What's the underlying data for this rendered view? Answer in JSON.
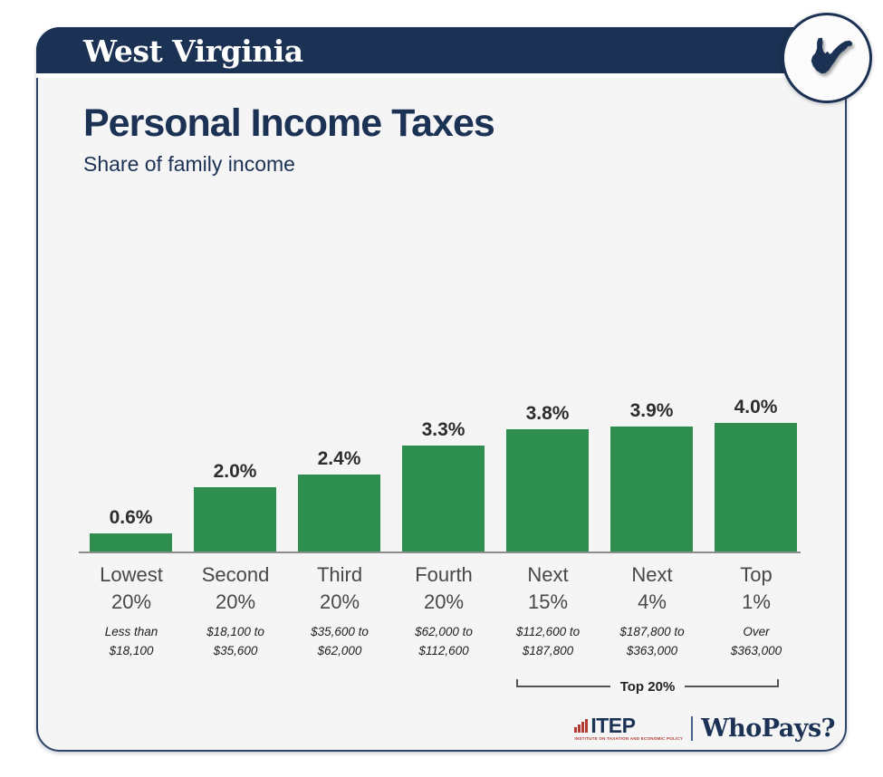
{
  "header": {
    "state_name": "West Virginia",
    "badge_icon": "west-virginia-state-silhouette"
  },
  "main": {
    "title": "Personal Income Taxes",
    "subtitle": "Share of family income"
  },
  "chart_data": {
    "type": "bar",
    "title": "Personal Income Taxes",
    "subtitle": "Share of family income",
    "categories": [
      "Lowest 20%",
      "Second 20%",
      "Third 20%",
      "Fourth 20%",
      "Next 15%",
      "Next 4%",
      "Top 1%"
    ],
    "values": [
      0.6,
      2.0,
      2.4,
      3.3,
      3.8,
      3.9,
      4.0
    ],
    "bars": [
      {
        "label": [
          "Lowest",
          "20%"
        ],
        "income_range": [
          "Less than",
          "$18,100"
        ],
        "value": 0.6,
        "value_label": "0.6%"
      },
      {
        "label": [
          "Second",
          "20%"
        ],
        "income_range": [
          "$18,100 to",
          "$35,600"
        ],
        "value": 2.0,
        "value_label": "2.0%"
      },
      {
        "label": [
          "Third",
          "20%"
        ],
        "income_range": [
          "$35,600 to",
          "$62,000"
        ],
        "value": 2.4,
        "value_label": "2.4%"
      },
      {
        "label": [
          "Fourth",
          "20%"
        ],
        "income_range": [
          "$62,000 to",
          "$112,600"
        ],
        "value": 3.3,
        "value_label": "3.3%"
      },
      {
        "label": [
          "Next",
          "15%"
        ],
        "income_range": [
          "$112,600 to",
          "$187,800"
        ],
        "value": 3.8,
        "value_label": "3.8%"
      },
      {
        "label": [
          "Next",
          "4%"
        ],
        "income_range": [
          "$187,800 to",
          "$363,000"
        ],
        "value": 3.9,
        "value_label": "3.9%"
      },
      {
        "label": [
          "Top",
          "1%"
        ],
        "income_range": [
          "Over",
          "$363,000"
        ],
        "value": 4.0,
        "value_label": "4.0%"
      }
    ],
    "annotation_bracket": {
      "label": "Top 20%",
      "covers": [
        "Next 15%",
        "Next 4%",
        "Top 1%"
      ]
    },
    "bar_color": "#2e8e50",
    "ylim": [
      0,
      4.4
    ],
    "grid": false,
    "legend": false,
    "value_labels_shown": true
  },
  "footer": {
    "itep_wordmark": "ITEP",
    "itep_tagline": "INSTITUTE ON TAXATION AND ECONOMIC POLICY",
    "whopays_wordmark": "WhoPays?"
  },
  "colors": {
    "navy": "#1b3255",
    "bar_green": "#2e8e50",
    "content_bg": "#f5f5f6",
    "itep_red": "#b23a32",
    "axis_gray": "#8c8c8c"
  }
}
